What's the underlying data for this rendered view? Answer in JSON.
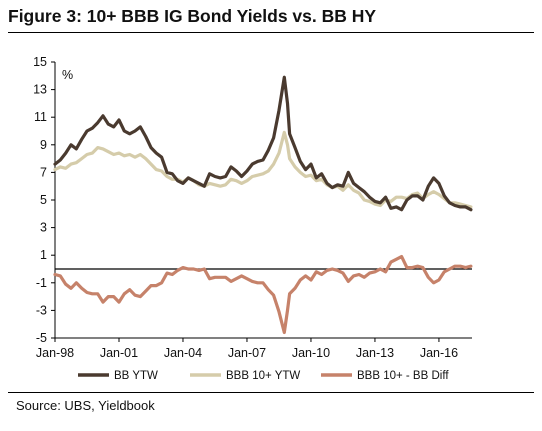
{
  "title": "Figure 3: 10+ BBB IG Bond Yields vs. BB HY",
  "source": "Source:  UBS, Yieldbook",
  "chart_data": {
    "type": "line",
    "y_unit_label": "%",
    "x_range": [
      1998.0,
      2017.55
    ],
    "ylim": [
      -5,
      15
    ],
    "y_ticks": [
      -5,
      -3,
      -1,
      1,
      3,
      5,
      7,
      9,
      11,
      13,
      15
    ],
    "x_ticks": [
      {
        "label": "Jan-98",
        "x": 1998.0
      },
      {
        "label": "Jan-01",
        "x": 2001.0
      },
      {
        "label": "Jan-04",
        "x": 2004.0
      },
      {
        "label": "Jan-07",
        "x": 2007.0
      },
      {
        "label": "Jan-10",
        "x": 2010.0
      },
      {
        "label": "Jan-13",
        "x": 2013.0
      },
      {
        "label": "Jan-16",
        "x": 2016.0
      }
    ],
    "zero_line": 0,
    "grid": false,
    "legend_position": "bottom",
    "series": [
      {
        "name": "BB YTW",
        "color": "#4a3a2f",
        "x": [
          1998.0,
          1998.25,
          1998.5,
          1998.75,
          1999.0,
          1999.25,
          1999.5,
          1999.75,
          2000.0,
          2000.25,
          2000.5,
          2000.75,
          2001.0,
          2001.25,
          2001.5,
          2001.75,
          2002.0,
          2002.25,
          2002.5,
          2002.75,
          2003.0,
          2003.25,
          2003.5,
          2003.75,
          2004.0,
          2004.25,
          2004.5,
          2004.75,
          2005.0,
          2005.25,
          2005.5,
          2005.75,
          2006.0,
          2006.25,
          2006.5,
          2006.75,
          2007.0,
          2007.25,
          2007.5,
          2007.75,
          2008.0,
          2008.25,
          2008.5,
          2008.75,
          2008.9,
          2009.0,
          2009.25,
          2009.5,
          2009.75,
          2010.0,
          2010.25,
          2010.5,
          2010.75,
          2011.0,
          2011.25,
          2011.5,
          2011.75,
          2012.0,
          2012.25,
          2012.5,
          2012.75,
          2013.0,
          2013.25,
          2013.5,
          2013.75,
          2014.0,
          2014.25,
          2014.5,
          2014.75,
          2015.0,
          2015.25,
          2015.5,
          2015.75,
          2016.0,
          2016.25,
          2016.5,
          2016.75,
          2017.0,
          2017.25,
          2017.5
        ],
        "values": [
          7.6,
          7.9,
          8.4,
          9.0,
          8.7,
          9.4,
          10.0,
          10.2,
          10.6,
          11.1,
          10.5,
          10.3,
          10.8,
          10.0,
          9.8,
          10.0,
          10.3,
          9.6,
          8.8,
          8.4,
          8.1,
          7.0,
          6.9,
          6.4,
          6.2,
          6.6,
          6.4,
          6.2,
          6.0,
          6.9,
          6.7,
          6.6,
          6.7,
          7.4,
          7.1,
          6.7,
          7.1,
          7.6,
          7.8,
          7.9,
          8.6,
          9.5,
          11.5,
          13.9,
          12.0,
          9.8,
          8.8,
          7.8,
          7.2,
          7.6,
          6.6,
          6.9,
          6.2,
          5.9,
          6.1,
          6.0,
          7.0,
          6.2,
          5.9,
          5.6,
          5.2,
          4.9,
          4.8,
          5.2,
          4.4,
          4.5,
          4.3,
          5.0,
          5.3,
          5.3,
          5.0,
          6.0,
          6.6,
          6.2,
          5.3,
          4.8,
          4.6,
          4.5,
          4.5,
          4.3
        ]
      },
      {
        "name": "BBB 10+ YTW",
        "color": "#d5ccaa",
        "x": [
          1998.0,
          1998.25,
          1998.5,
          1998.75,
          1999.0,
          1999.25,
          1999.5,
          1999.75,
          2000.0,
          2000.25,
          2000.5,
          2000.75,
          2001.0,
          2001.25,
          2001.5,
          2001.75,
          2002.0,
          2002.25,
          2002.5,
          2002.75,
          2003.0,
          2003.25,
          2003.5,
          2003.75,
          2004.0,
          2004.25,
          2004.5,
          2004.75,
          2005.0,
          2005.25,
          2005.5,
          2005.75,
          2006.0,
          2006.25,
          2006.5,
          2006.75,
          2007.0,
          2007.25,
          2007.5,
          2007.75,
          2008.0,
          2008.25,
          2008.5,
          2008.75,
          2008.9,
          2009.0,
          2009.25,
          2009.5,
          2009.75,
          2010.0,
          2010.25,
          2010.5,
          2010.75,
          2011.0,
          2011.25,
          2011.5,
          2011.75,
          2012.0,
          2012.25,
          2012.5,
          2012.75,
          2013.0,
          2013.25,
          2013.5,
          2013.75,
          2014.0,
          2014.25,
          2014.5,
          2014.75,
          2015.0,
          2015.25,
          2015.5,
          2015.75,
          2016.0,
          2016.25,
          2016.5,
          2016.75,
          2017.0,
          2017.25,
          2017.5
        ],
        "values": [
          7.2,
          7.4,
          7.3,
          7.6,
          7.7,
          8.0,
          8.3,
          8.4,
          8.8,
          8.7,
          8.5,
          8.3,
          8.4,
          8.2,
          8.3,
          8.1,
          8.3,
          8.0,
          7.6,
          7.2,
          7.1,
          6.7,
          6.5,
          6.5,
          6.3,
          6.6,
          6.4,
          6.1,
          6.0,
          6.2,
          6.1,
          6.0,
          6.1,
          6.5,
          6.4,
          6.2,
          6.4,
          6.7,
          6.8,
          6.9,
          7.1,
          7.6,
          8.4,
          9.9,
          9.0,
          8.0,
          7.4,
          7.0,
          6.7,
          6.8,
          6.4,
          6.5,
          6.1,
          5.9,
          6.0,
          5.7,
          6.1,
          5.7,
          5.5,
          5.0,
          4.9,
          4.7,
          4.6,
          5.0,
          4.9,
          5.2,
          5.2,
          5.1,
          5.4,
          5.5,
          5.1,
          5.4,
          5.6,
          5.4,
          5.1,
          4.8,
          4.8,
          4.7,
          4.6,
          4.5
        ]
      },
      {
        "name": "BBB 10+ - BB Diff",
        "color": "#c6826a",
        "x": [
          1998.0,
          1998.25,
          1998.5,
          1998.75,
          1999.0,
          1999.25,
          1999.5,
          1999.75,
          2000.0,
          2000.25,
          2000.5,
          2000.75,
          2001.0,
          2001.25,
          2001.5,
          2001.75,
          2002.0,
          2002.25,
          2002.5,
          2002.75,
          2003.0,
          2003.25,
          2003.5,
          2003.75,
          2004.0,
          2004.25,
          2004.5,
          2004.75,
          2005.0,
          2005.25,
          2005.5,
          2005.75,
          2006.0,
          2006.25,
          2006.5,
          2006.75,
          2007.0,
          2007.25,
          2007.5,
          2007.75,
          2008.0,
          2008.25,
          2008.5,
          2008.75,
          2008.9,
          2009.0,
          2009.25,
          2009.5,
          2009.75,
          2010.0,
          2010.25,
          2010.5,
          2010.75,
          2011.0,
          2011.25,
          2011.5,
          2011.75,
          2012.0,
          2012.25,
          2012.5,
          2012.75,
          2013.0,
          2013.25,
          2013.5,
          2013.75,
          2014.0,
          2014.25,
          2014.5,
          2014.75,
          2015.0,
          2015.25,
          2015.5,
          2015.75,
          2016.0,
          2016.25,
          2016.5,
          2016.75,
          2017.0,
          2017.25,
          2017.5
        ],
        "values": [
          -0.4,
          -0.5,
          -1.1,
          -1.4,
          -1.0,
          -1.4,
          -1.7,
          -1.8,
          -1.8,
          -2.4,
          -2.0,
          -2.0,
          -2.4,
          -1.8,
          -1.5,
          -1.9,
          -2.0,
          -1.6,
          -1.2,
          -1.2,
          -1.0,
          -0.3,
          -0.4,
          -0.1,
          0.1,
          0.0,
          0.0,
          -0.1,
          0.0,
          -0.7,
          -0.6,
          -0.6,
          -0.6,
          -0.9,
          -0.7,
          -0.5,
          -0.7,
          -0.9,
          -1.0,
          -1.0,
          -1.5,
          -1.9,
          -3.1,
          -4.6,
          -3.0,
          -1.8,
          -1.4,
          -0.8,
          -0.5,
          -0.8,
          -0.2,
          -0.4,
          -0.1,
          0.0,
          -0.1,
          -0.3,
          -0.9,
          -0.5,
          -0.4,
          -0.6,
          -0.3,
          -0.2,
          0.0,
          -0.2,
          0.5,
          0.7,
          0.9,
          0.1,
          0.1,
          0.2,
          0.1,
          -0.6,
          -1.0,
          -0.8,
          -0.2,
          0.0,
          0.2,
          0.2,
          0.1,
          0.2
        ]
      }
    ]
  }
}
